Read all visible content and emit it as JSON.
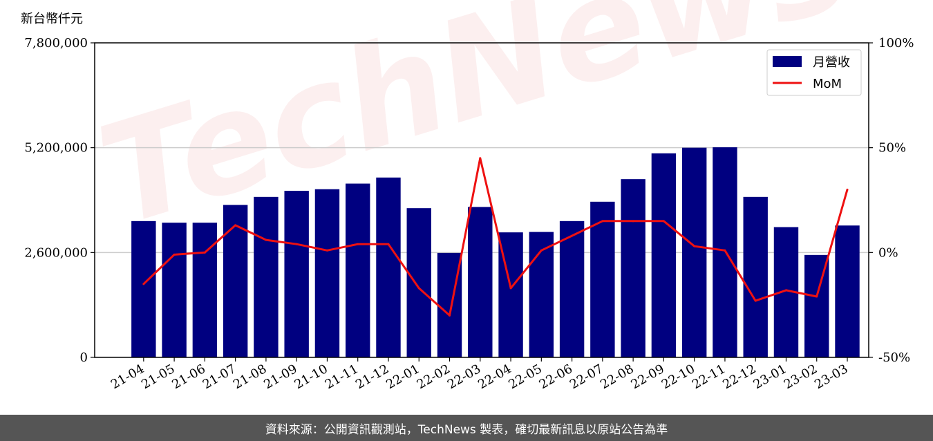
{
  "chart_data": {
    "type": "bar",
    "y_unit_label": "新台幣仟元",
    "categories": [
      "21-04",
      "21-05",
      "21-06",
      "21-07",
      "21-08",
      "21-09",
      "21-10",
      "21-11",
      "21-12",
      "22-01",
      "22-02",
      "22-03",
      "22-04",
      "22-05",
      "22-06",
      "22-07",
      "22-08",
      "22-09",
      "22-10",
      "22-11",
      "22-12",
      "23-01",
      "23-02",
      "23-03"
    ],
    "series": [
      {
        "name": "月營收",
        "type": "bar",
        "axis": "left",
        "color": "#000080",
        "values": [
          3380000,
          3340000,
          3340000,
          3780000,
          3980000,
          4130000,
          4170000,
          4310000,
          4460000,
          3700000,
          2590000,
          3730000,
          3100000,
          3110000,
          3380000,
          3860000,
          4420000,
          5060000,
          5200000,
          5210000,
          3980000,
          3230000,
          2540000,
          3270000
        ]
      },
      {
        "name": "MoM",
        "type": "line",
        "axis": "right",
        "color": "#ee1111",
        "values": [
          -15,
          -1,
          0,
          13,
          6,
          4,
          1,
          4,
          4,
          -17,
          -30,
          45,
          -17,
          1,
          8,
          15,
          15,
          15,
          3,
          1,
          -23,
          -18,
          -21,
          30
        ]
      }
    ],
    "y_left": {
      "ticks": [
        "0",
        "2,600,000",
        "5,200,000",
        "7,800,000"
      ],
      "ylim": [
        0,
        7800000
      ]
    },
    "y_right": {
      "ticks": [
        "-50%",
        "0%",
        "50%",
        "100%"
      ],
      "ylim": [
        -50,
        100
      ]
    },
    "grid": "horizontal",
    "legend_placement": "top-right"
  },
  "watermark": "TechNews",
  "footer": {
    "text": "資料來源：公開資訊觀測站，TechNews 製表，確切最新訊息以原站公告為準"
  }
}
